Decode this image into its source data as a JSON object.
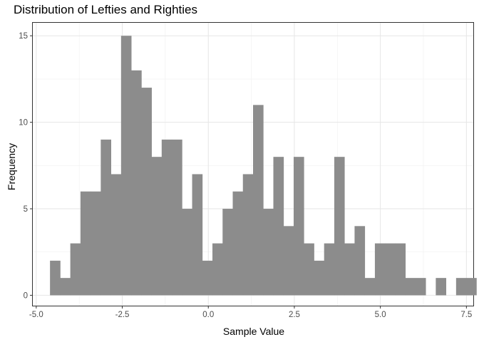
{
  "chart_data": {
    "type": "bar",
    "title": "Distribution of Lefties and Righties",
    "xlabel": "Sample Value",
    "ylabel": "Frequency",
    "bin_width": 0.295,
    "x_start": -4.6,
    "counts": [
      2,
      1,
      3,
      6,
      6,
      9,
      7,
      15,
      13,
      12,
      8,
      9,
      9,
      5,
      7,
      2,
      3,
      5,
      6,
      7,
      11,
      5,
      8,
      4,
      8,
      3,
      2,
      3,
      8,
      3,
      4,
      1,
      3,
      3,
      3,
      1,
      1,
      0,
      1,
      0,
      1,
      1
    ],
    "xlim": [
      -5.1,
      7.7
    ],
    "ylim": [
      -0.6,
      15.75
    ],
    "x_ticks": [
      -5.0,
      -2.5,
      0.0,
      2.5,
      5.0,
      7.5
    ],
    "x_tick_labels": [
      "-5.0",
      "-2.5",
      "0.0",
      "2.5",
      "5.0",
      "7.5"
    ],
    "y_ticks": [
      0,
      5,
      10,
      15
    ],
    "y_tick_labels": [
      "0",
      "5",
      "10",
      "15"
    ],
    "bar_color": "#8c8c8c",
    "grid": true,
    "legend": "none"
  }
}
